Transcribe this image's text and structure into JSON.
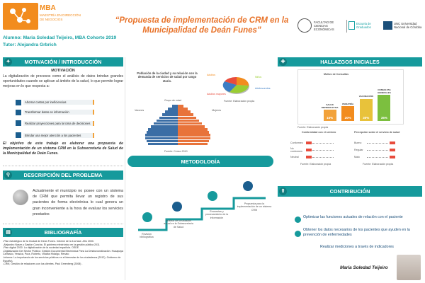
{
  "header": {
    "logo_mba": "MBA",
    "logo_sub": "MAESTRÍA EN DIRECCIÓN DE NEGOCIOS",
    "title": "“Propuesta de implementación de CRM en la Municipalidad de Deán Funes”",
    "author": "Alumno: Maria Soledad Teijeiro, MBA Cohorte 2019",
    "tutor": "Tutor: Alejandra Grbrich",
    "inst1": "FACULTAD DE CIENCIAS ECONÓMICAS",
    "inst2": "Escuela de Graduados",
    "inst3": "UNC Universidad Nacional de Córdoba"
  },
  "motivacion": {
    "bar": "MOTIVACIÓN / INTRODUCCIÓN",
    "subtitle": "MOTIVACIÓN",
    "text": "La digitalización de procesos como el análisis de datos brindan grandes oportunidades cuando se aplican al ámbito de la salud, lo que permite lograr mejoras en lo que respecta a:",
    "items": [
      "Ahorrar costos por ineficiencias",
      "Transformar datos en información",
      "Realizar proyecciones para la toma de decisiones",
      "Brindar una mejor atención a los pacientes"
    ],
    "objetivo": "El objetivo de este trabajo es elaborar una propuesta de implementación de un sistema CRM en la Subsecretaría de Salud de la Municipalidad de Deán Funes."
  },
  "problema": {
    "bar": "DESCRIPCIÓN DEL PROBLEMA",
    "text": "Actualmente el municipio no posee con un sistema de CRM que permita llevar un registro de sus pacientes de forma electrónica lo cual genera un gran inconveniente a la hora de evaluar los servicios prestados"
  },
  "bibliografia": {
    "bar": "BIBLIOGRAFÍA",
    "lines": [
      "-Plan estratégico de la Ciudad de Deán Funes. Informe de la 1ra fase. Año 2000.",
      "-Alejandro Naser y Gastón Concha. El gobierno electrónico en la gestión pública 2011",
      "-Plan digital 2030. La digitalización de la sociedad española. OSDE",
      "-Digitalización Del Sector Público: Gestión Documental Electrónica Para La Desburocratización. Huaapaya Carrasko, Yessica, Pura, Roberto, Villalba Hidalgo, Renato",
      "-Informe: La importancia de los servicios públicos en el bienestar de los ciudadanos (2012). Gobierno de España).",
      "-CRM, Gestión de relaciones con los clientes. Paul Greenberg (2008) ."
    ]
  },
  "chart": {
    "caption": "Población de la ciudad y su relación con la demanda de servicios de salud por rango etario.",
    "pyramid_title": "Grupo de edad",
    "left": "Varones",
    "right": "Mujeres",
    "source1": "Fuente: Censo 2010",
    "pie_legend": [
      "Adultos",
      "Niños",
      "Adolescentes",
      "Adultos mayores"
    ],
    "source2": "Fuente: Elaboración propia"
  },
  "metodologia": {
    "bar": "METODOLOGÍA",
    "steps": [
      "Revisión bibliográfica",
      "Análisis de la situación actual en la Subsecretaría de Salud",
      "Encuestas y procesamiento de la información",
      "Propuesta para la implementación de un sistema CRM"
    ]
  },
  "hallazgos": {
    "bar": "HALLAZGOS INICIALES",
    "chart_title": "Motivo de Consultas",
    "source1": "Fuente: Elaboración propia",
    "source2": "Fuente: Elaboración propia",
    "source3": "Fuente: Elaboración propia",
    "left_title": "Conformidad con el servicio",
    "right_title": "Percepción sobre el servicio de salud",
    "rows": [
      "Conformes",
      "No conformes",
      "Neutral"
    ],
    "row_right": [
      "Bueno",
      "Regular",
      "Malo"
    ]
  },
  "chart_data": {
    "type": "bar",
    "title": "Motivo de Consultas",
    "categories": [
      "SALUD REPRODUCTIVA",
      "PEDIATRÍA",
      "VACUNACIÓN",
      "CONSULTAS GENERALES"
    ],
    "values": [
      15,
      20,
      30,
      35
    ],
    "labels": [
      "15%",
      "20%",
      "30%",
      "35%"
    ],
    "colors": [
      "#f2a23a",
      "#f28c1e",
      "#e8c23a",
      "#7cbf3f"
    ],
    "ylim": [
      0,
      40
    ]
  },
  "contribucion": {
    "bar": "CONTRIBUCIÓN",
    "items": [
      "Optimizar las funciones actuales de relación con el paciente",
      "Obtener los datos necesarios de los pacientes que ayuden en la prevención de enfermedades",
      "Realizar mediciones a través de indicadores"
    ],
    "signature": "Maria Soledad Teijeiro"
  }
}
